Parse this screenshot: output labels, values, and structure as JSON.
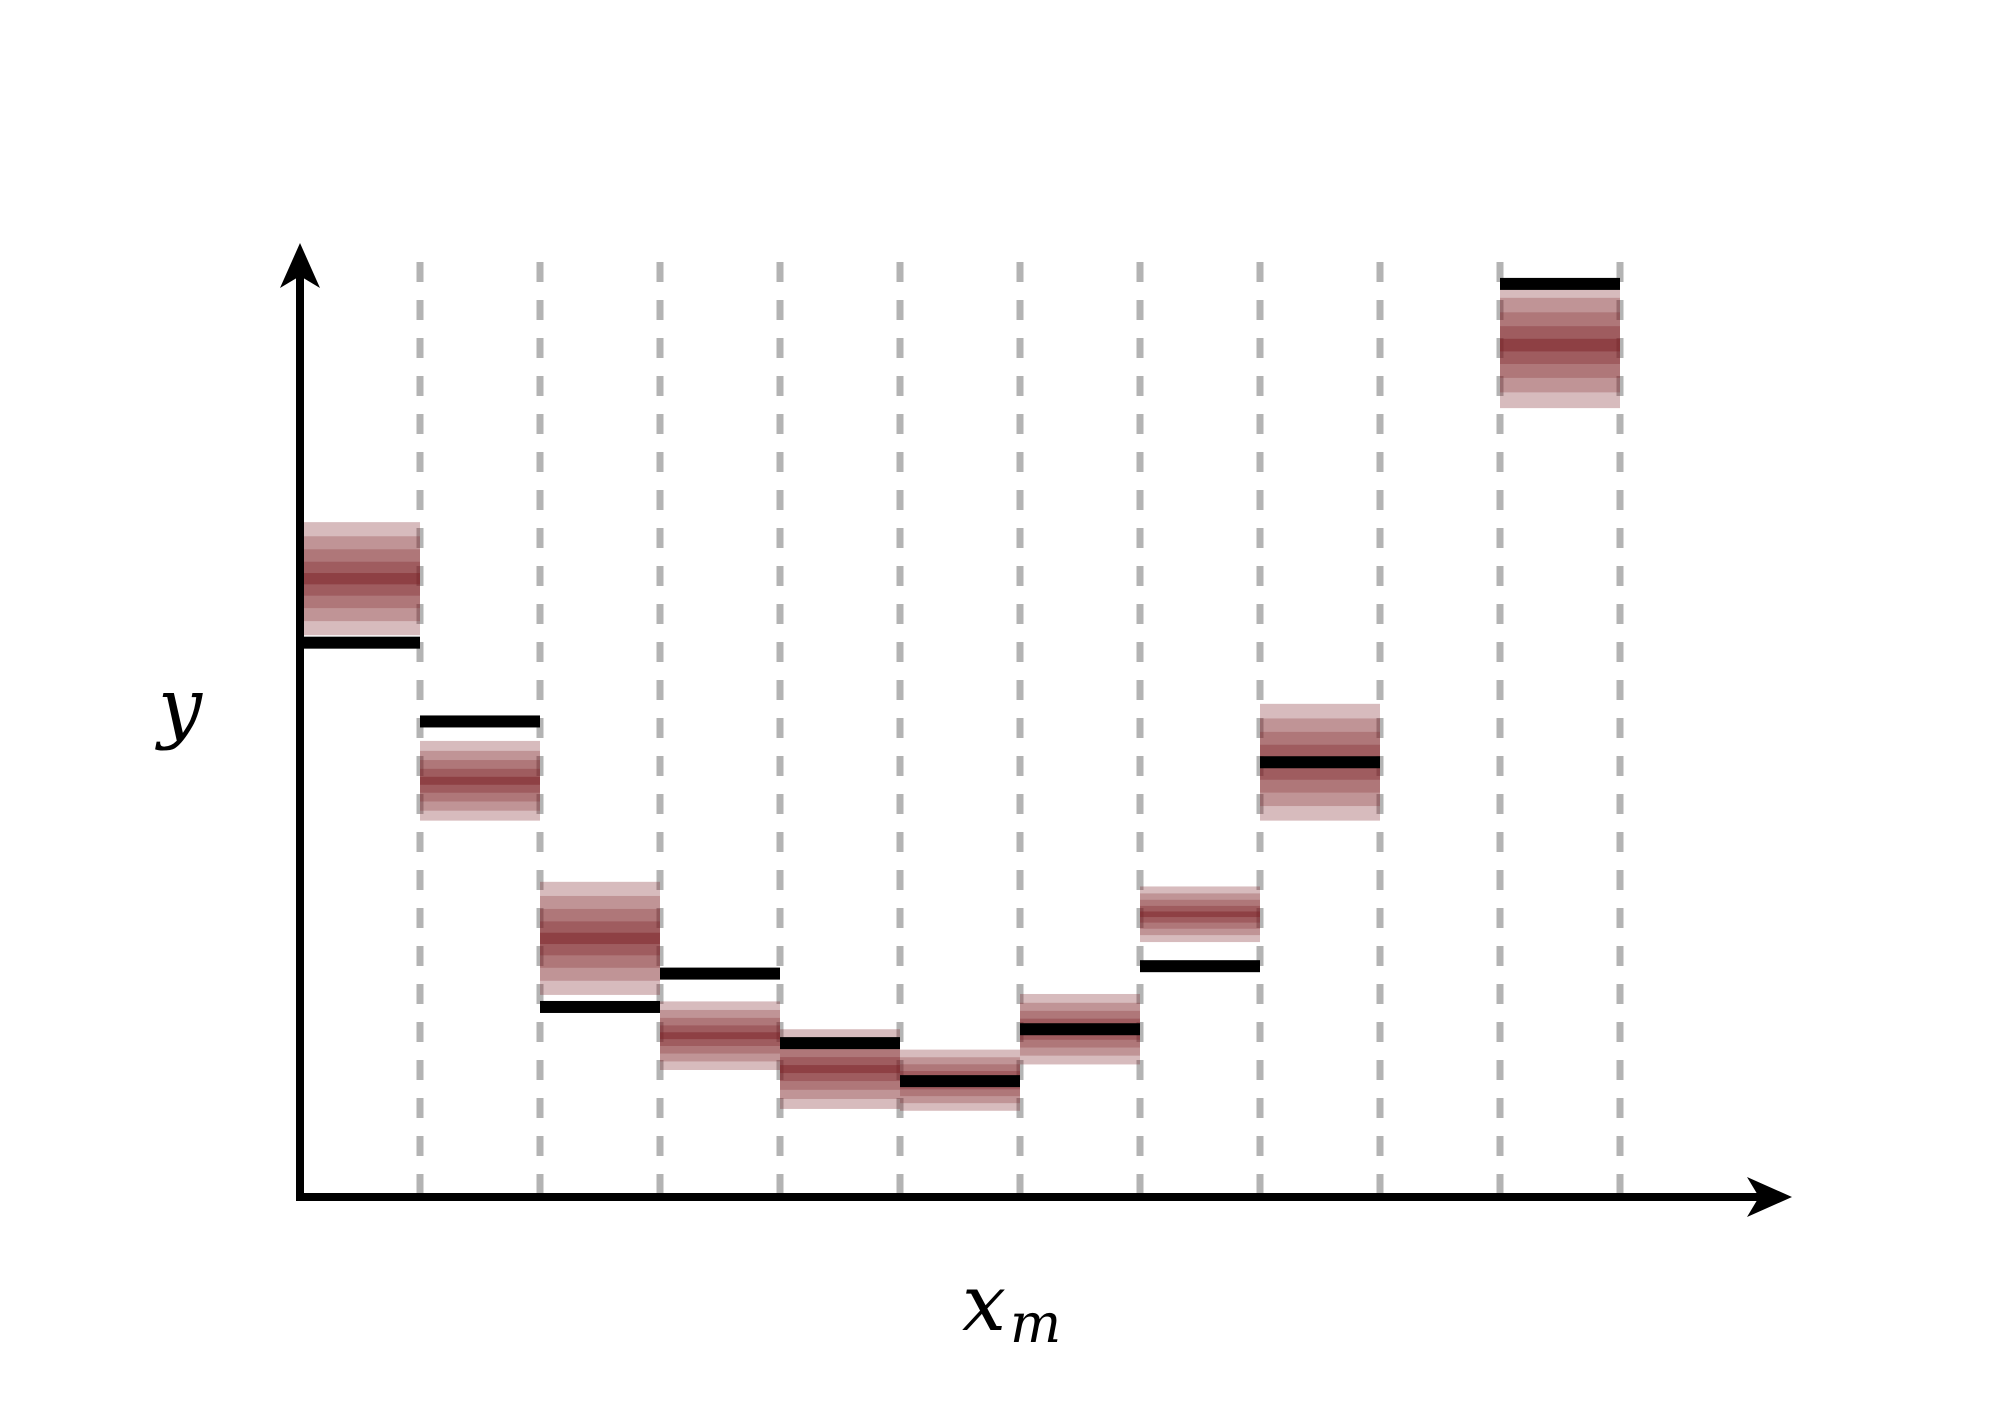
{
  "chart_data": {
    "type": "bar",
    "xlabel": "x",
    "xlabel_subscript": "m",
    "ylabel": "y",
    "bin_count": 11,
    "ylim": [
      0,
      10
    ],
    "band_color": "#7b1f24",
    "reference_color": "#000000",
    "grid_color": "#b3b3b3",
    "bins": [
      {
        "index": 1,
        "predicted_mean": 6.67,
        "band_halfwidth": 0.61,
        "reference": 5.98
      },
      {
        "index": 2,
        "predicted_mean": 4.49,
        "band_halfwidth": 0.43,
        "reference": 5.13
      },
      {
        "index": 3,
        "predicted_mean": 2.79,
        "band_halfwidth": 0.61,
        "reference": 2.05
      },
      {
        "index": 4,
        "predicted_mean": 1.74,
        "band_halfwidth": 0.37,
        "reference": 2.41
      },
      {
        "index": 5,
        "predicted_mean": 1.38,
        "band_halfwidth": 0.43,
        "reference": 1.66
      },
      {
        "index": 6,
        "predicted_mean": 1.26,
        "band_halfwidth": 0.33,
        "reference": 1.25
      },
      {
        "index": 7,
        "predicted_mean": 1.81,
        "band_halfwidth": 0.38,
        "reference": 1.81
      },
      {
        "index": 8,
        "predicted_mean": 3.05,
        "band_halfwidth": 0.3,
        "reference": 2.49
      },
      {
        "index": 9,
        "predicted_mean": 4.69,
        "band_halfwidth": 0.63,
        "reference": 4.69
      },
      {
        "index": 10,
        "predicted_mean": null,
        "band_halfwidth": null,
        "reference": null
      },
      {
        "index": 11,
        "predicted_mean": 9.19,
        "band_halfwidth": 0.68,
        "reference": 9.85
      }
    ]
  }
}
